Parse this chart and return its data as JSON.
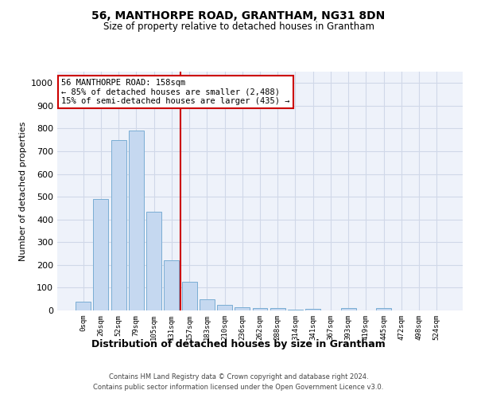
{
  "title": "56, MANTHORPE ROAD, GRANTHAM, NG31 8DN",
  "subtitle": "Size of property relative to detached houses in Grantham",
  "xlabel": "Distribution of detached houses by size in Grantham",
  "ylabel": "Number of detached properties",
  "bar_labels": [
    "0sqm",
    "26sqm",
    "52sqm",
    "79sqm",
    "105sqm",
    "131sqm",
    "157sqm",
    "183sqm",
    "210sqm",
    "236sqm",
    "262sqm",
    "288sqm",
    "314sqm",
    "341sqm",
    "367sqm",
    "393sqm",
    "419sqm",
    "445sqm",
    "472sqm",
    "498sqm",
    "524sqm"
  ],
  "bar_values": [
    40,
    490,
    750,
    790,
    435,
    220,
    125,
    50,
    25,
    15,
    10,
    10,
    5,
    8,
    0,
    10,
    0,
    10,
    0,
    0,
    0
  ],
  "bar_color": "#c5d8f0",
  "bar_edge_color": "#7aadd4",
  "grid_color": "#d0d8e8",
  "bg_color": "#eef2fa",
  "vline_x": 5.5,
  "vline_color": "#cc0000",
  "annotation_text": "56 MANTHORPE ROAD: 158sqm\n← 85% of detached houses are smaller (2,488)\n15% of semi-detached houses are larger (435) →",
  "annotation_box_color": "#cc0000",
  "footer_line1": "Contains HM Land Registry data © Crown copyright and database right 2024.",
  "footer_line2": "Contains public sector information licensed under the Open Government Licence v3.0.",
  "ylim": [
    0,
    1050
  ],
  "yticks": [
    0,
    100,
    200,
    300,
    400,
    500,
    600,
    700,
    800,
    900,
    1000
  ],
  "fig_width": 6.0,
  "fig_height": 5.0,
  "dpi": 100
}
